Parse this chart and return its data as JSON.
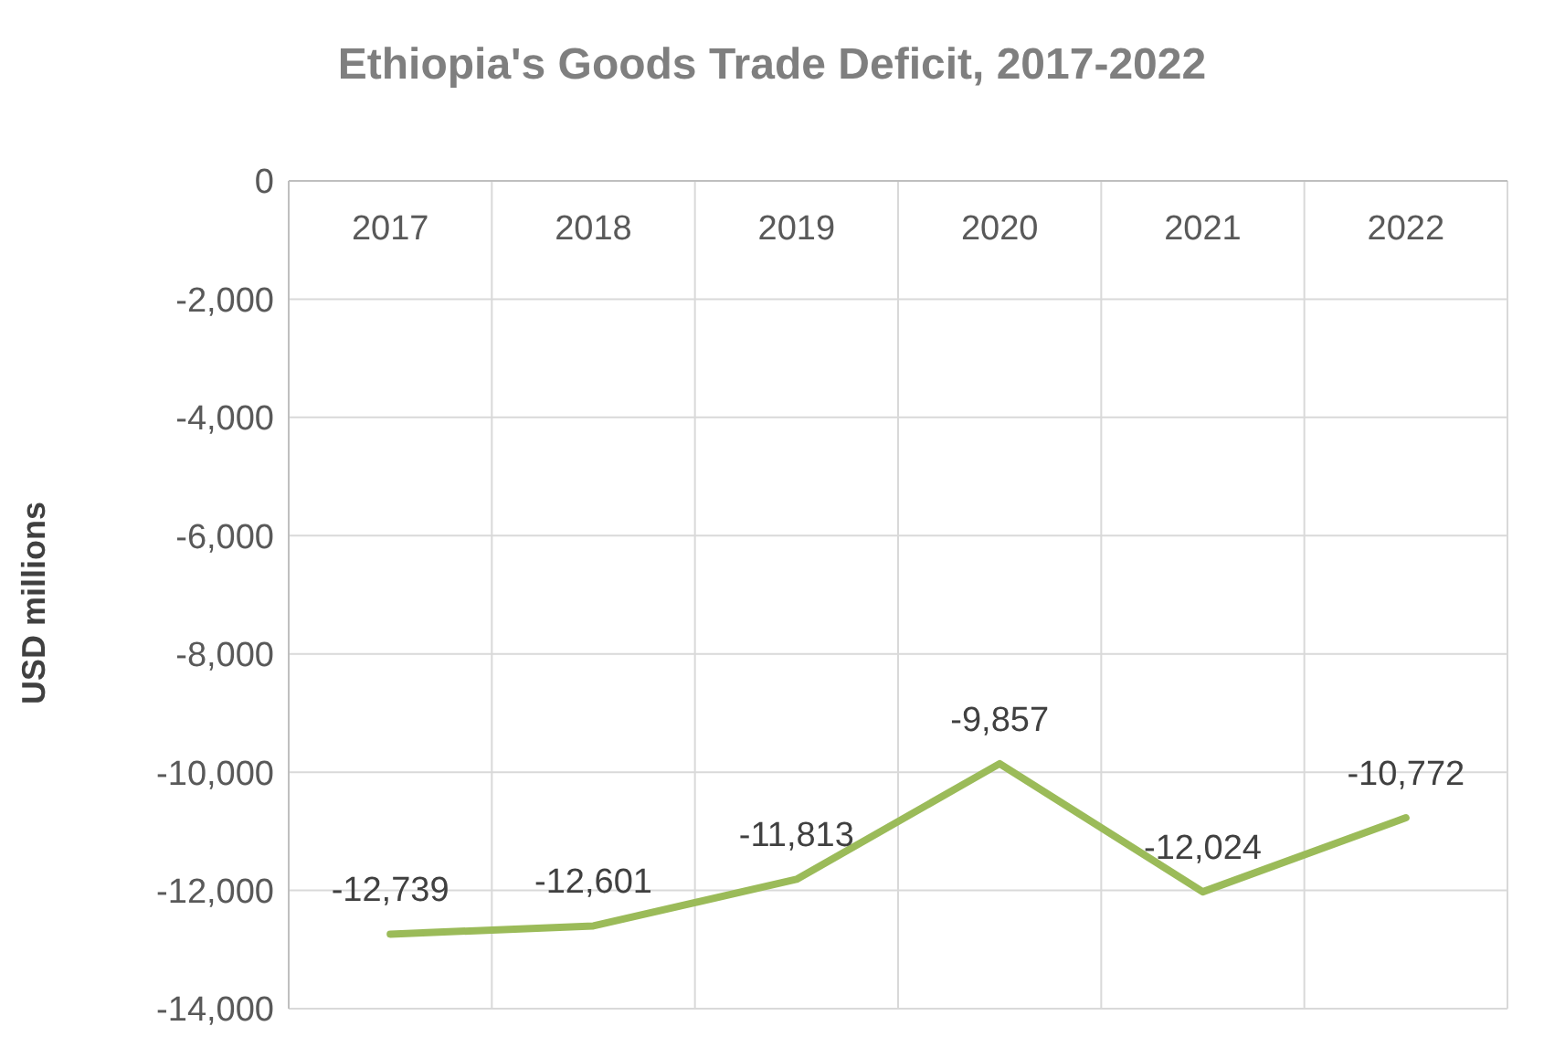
{
  "chart_data": {
    "type": "line",
    "title": "Ethiopia's Goods Trade Deficit, 2017-2022",
    "ylabel": "USD millions",
    "categories": [
      "2017",
      "2018",
      "2019",
      "2020",
      "2021",
      "2022"
    ],
    "series": [
      {
        "color": "#9bbb59",
        "values": [
          -12739,
          -12601,
          -11813,
          -9857,
          -12024,
          -10772
        ],
        "value_labels": [
          "-12,739",
          "-12,601",
          "-11,813",
          "-9,857",
          "-12,024",
          "-10,772"
        ]
      }
    ],
    "ylim": [
      -14000,
      0
    ],
    "yticks": [
      {
        "value": 0,
        "label": "0"
      },
      {
        "value": -2000,
        "label": "-2,000"
      },
      {
        "value": -4000,
        "label": "-4,000"
      },
      {
        "value": -6000,
        "label": "-6,000"
      },
      {
        "value": -8000,
        "label": "-8,000"
      },
      {
        "value": -10000,
        "label": "-10,000"
      },
      {
        "value": -12000,
        "label": "-12,000"
      },
      {
        "value": -14000,
        "label": "-14,000"
      }
    ],
    "grid": true,
    "marker": "none",
    "line_style": "solid"
  }
}
